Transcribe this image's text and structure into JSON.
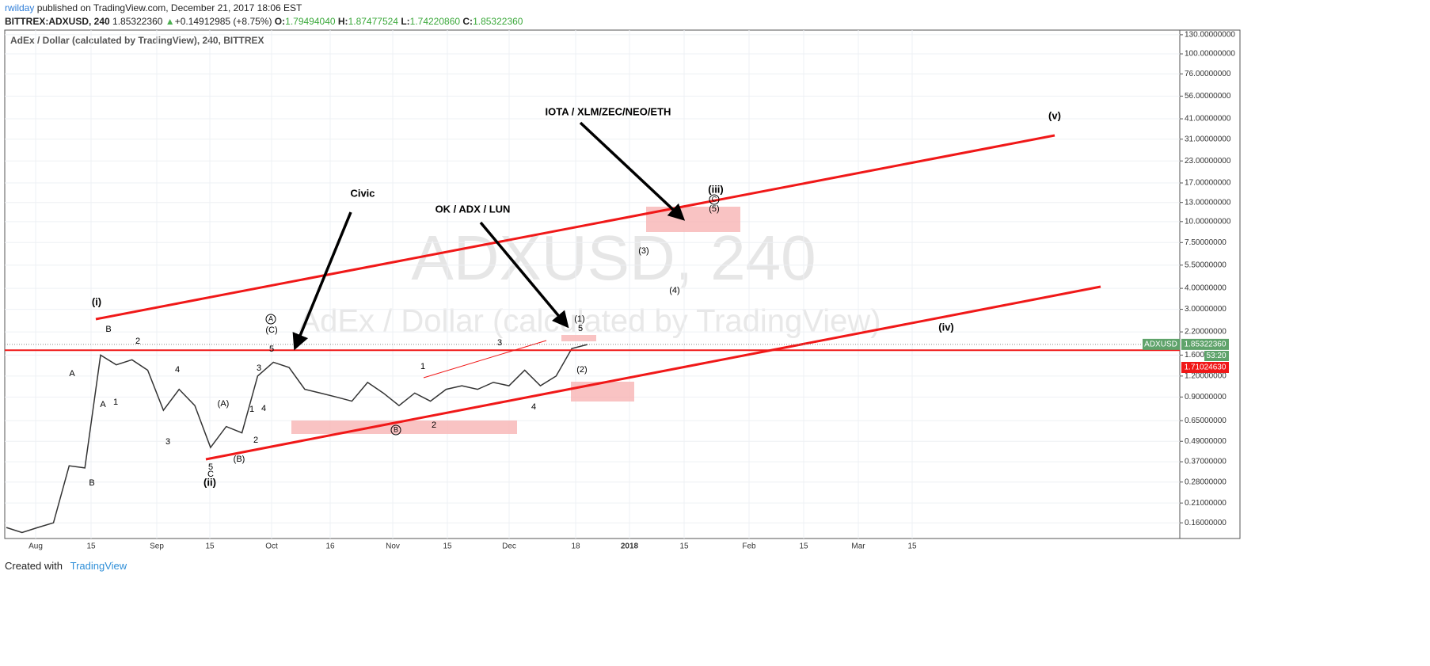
{
  "header": {
    "author": "rwilday",
    "published": "published on TradingView.com, December 21, 2017 18:06 EST"
  },
  "symbol_bar": {
    "symbol": "BITTREX:ADXUSD, 240",
    "last": "1.85322360",
    "arrow": "▲",
    "change": "+0.14912985 (+8.75%)",
    "o_label": "O:",
    "o": "1.79494040",
    "h_label": "H:",
    "h": "1.87477524",
    "l_label": "L:",
    "l": "1.74220860",
    "c_label": "C:",
    "c": "1.85322360"
  },
  "chart_data": {
    "type": "line",
    "title": "AdEx / Dollar (calculated by TradingView), 240, BITTREX",
    "watermark": "ADXUSD, 240",
    "watermark_sub": "AdEx / Dollar (calculated by TradingView)",
    "color": "#333333",
    "log_scale": true,
    "grid": true,
    "values": [
      0.15,
      0.14,
      0.15,
      0.16,
      0.35,
      0.34,
      1.6,
      1.4,
      1.5,
      1.3,
      0.75,
      1.0,
      0.8,
      0.45,
      0.6,
      0.55,
      1.2,
      1.45,
      1.35,
      1.0,
      0.95,
      0.9,
      0.85,
      1.1,
      0.95,
      0.8,
      0.95,
      0.85,
      1.0,
      1.05,
      1.0,
      1.1,
      1.05,
      1.3,
      1.05,
      1.2,
      1.75,
      1.85
    ],
    "ylim": [
      0.129,
      138.6
    ],
    "yticks": [
      {
        "value": 130,
        "label": "130.00000000"
      },
      {
        "value": 100,
        "label": "100.00000000"
      },
      {
        "value": 76,
        "label": "76.00000000"
      },
      {
        "value": 56,
        "label": "56.00000000"
      },
      {
        "value": 41,
        "label": "41.00000000"
      },
      {
        "value": 31,
        "label": "31.00000000"
      },
      {
        "value": 23,
        "label": "23.00000000"
      },
      {
        "value": 17,
        "label": "17.00000000"
      },
      {
        "value": 13,
        "label": "13.00000000"
      },
      {
        "value": 10,
        "label": "10.00000000"
      },
      {
        "value": 7.5,
        "label": "7.50000000"
      },
      {
        "value": 5.5,
        "label": "5.50000000"
      },
      {
        "value": 4,
        "label": "4.00000000"
      },
      {
        "value": 3,
        "label": "3.00000000"
      },
      {
        "value": 2.2,
        "label": "2.20000000"
      },
      {
        "value": 1.6,
        "label": "1.600"
      },
      {
        "value": 1.2,
        "label": "1.20000000"
      },
      {
        "value": 0.9,
        "label": "0.90000000"
      },
      {
        "value": 0.65,
        "label": "0.65000000"
      },
      {
        "value": 0.49,
        "label": "0.49000000"
      },
      {
        "value": 0.37,
        "label": "0.37000000"
      },
      {
        "value": 0.28,
        "label": "0.28000000"
      },
      {
        "value": 0.21,
        "label": "0.21000000"
      },
      {
        "value": 0.16,
        "label": "0.16000000"
      }
    ],
    "x_labels": [
      "Aug",
      "15",
      "Sep",
      "15",
      "Oct",
      "16",
      "Nov",
      "15",
      "Dec",
      "18",
      "2018",
      "15",
      "Feb",
      "15",
      "Mar",
      "15"
    ],
    "price_tags": {
      "symbol": "ADXUSD",
      "last": {
        "value": 1.8532236,
        "label": "1.85322360"
      },
      "countdown": "53:20",
      "level": {
        "value": 1.7102463,
        "label": "1.71024630"
      }
    },
    "annotations": [
      "(i)",
      "B",
      "A",
      "A",
      "1",
      "2",
      "4",
      "3",
      "B",
      "(A)",
      "1",
      "4",
      "2",
      "3",
      "5",
      "(C)",
      "A",
      "5",
      "C",
      "(ii)",
      "(B)",
      "Civic",
      "OK / ADX / LUN",
      "IOTA / XLM/ZEC/NEO/ETH",
      "1",
      "3",
      "B",
      "2",
      "4",
      "(1)",
      "5",
      "(2)",
      "(3)",
      "(4)",
      "(iii)",
      "C",
      "(5)",
      "(iv)",
      "(v)"
    ]
  },
  "footer": {
    "created": "Created with",
    "brand": "TradingView"
  }
}
